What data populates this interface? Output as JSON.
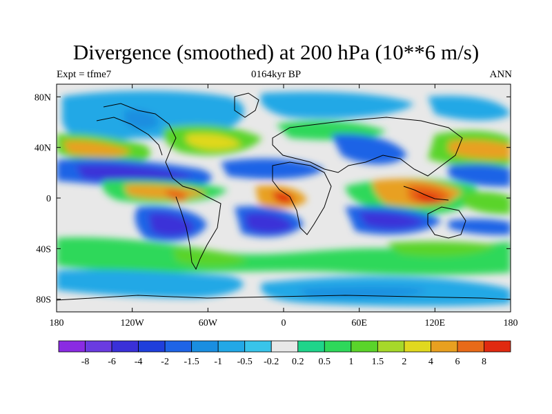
{
  "title": "Divergence (smoothed) at 200 hPa (10**6 m/s)",
  "subtitle_left": "Expt = tfme7",
  "subtitle_center": "0164kyr BP",
  "subtitle_right": "ANN",
  "colors": {
    "neg8": "#8a2be2",
    "neg6": "#6a3be0",
    "neg4": "#3a30d8",
    "neg2": "#1f3fdc",
    "neg15": "#1e64e6",
    "neg1": "#1a8ee0",
    "neg05": "#22a8e6",
    "neg02": "#38c4ea",
    "zero": "#e8e8e8",
    "pos02": "#1fd48a",
    "pos05": "#2ed85a",
    "pos1": "#5ad42a",
    "pos15": "#a6d82a",
    "pos2": "#e0d81f",
    "pos4": "#e8a020",
    "pos6": "#e86a18",
    "pos8": "#e02a10"
  },
  "chart_data": {
    "type": "heatmap",
    "title": "Divergence (smoothed) at 200 hPa (10**6 m/s)",
    "xlabel": "",
    "ylabel": "",
    "xlim": [
      -180,
      180
    ],
    "ylim": [
      -90,
      90
    ],
    "x_ticks": [
      {
        "value": -180,
        "label": "180"
      },
      {
        "value": -120,
        "label": "120W"
      },
      {
        "value": -60,
        "label": "60W"
      },
      {
        "value": 0,
        "label": "0"
      },
      {
        "value": 60,
        "label": "60E"
      },
      {
        "value": 120,
        "label": "120E"
      },
      {
        "value": 180,
        "label": "180"
      }
    ],
    "y_ticks": [
      {
        "value": 80,
        "label": "80N"
      },
      {
        "value": 40,
        "label": "40N"
      },
      {
        "value": 0,
        "label": "0"
      },
      {
        "value": -40,
        "label": "40S"
      },
      {
        "value": -80,
        "label": "80S"
      }
    ],
    "colorbar": {
      "labels": [
        "-8",
        "-6",
        "-4",
        "-2",
        "-1.5",
        "-1",
        "-0.5",
        "-0.2",
        "0.2",
        "0.5",
        "1",
        "1.5",
        "2",
        "4",
        "6",
        "8"
      ],
      "colors": [
        "#8a2be2",
        "#6a3be0",
        "#3a30d8",
        "#1f3fdc",
        "#1e64e6",
        "#1a8ee0",
        "#22a8e6",
        "#38c4ea",
        "#e8e8e8",
        "#1fd48a",
        "#2ed85a",
        "#5ad42a",
        "#a6d82a",
        "#e0d81f",
        "#e8a020",
        "#e86a18",
        "#e02a10"
      ]
    }
  }
}
